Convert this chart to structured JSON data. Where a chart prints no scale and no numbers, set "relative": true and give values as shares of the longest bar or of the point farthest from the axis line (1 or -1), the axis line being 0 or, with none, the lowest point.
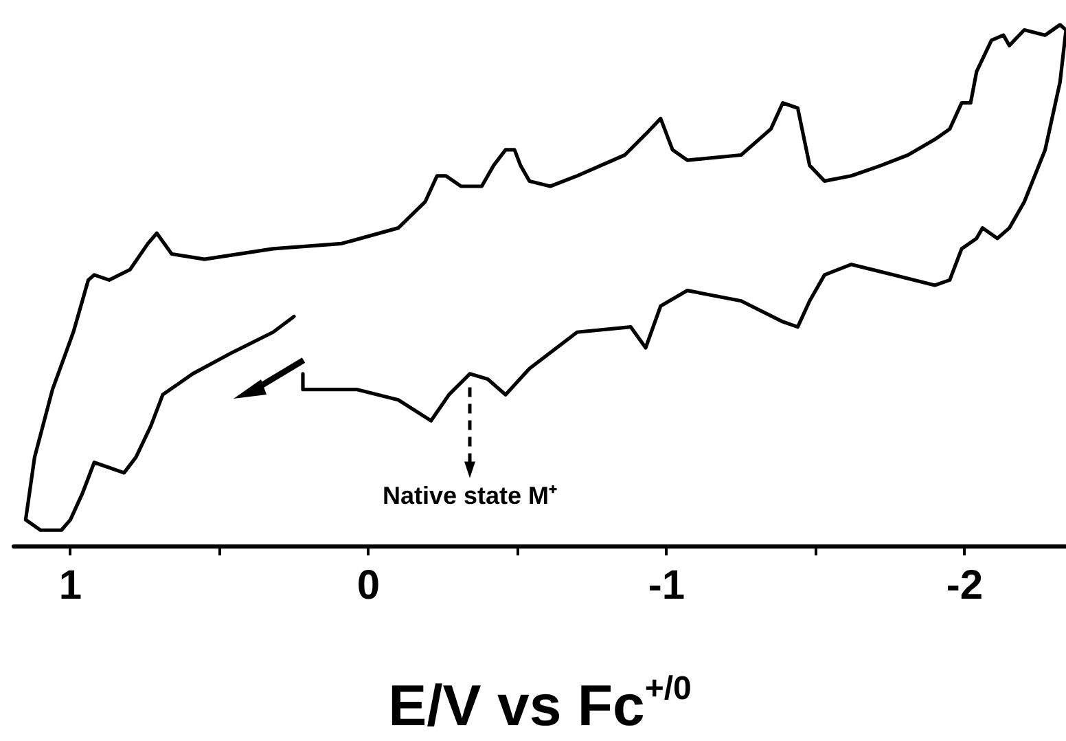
{
  "chart_data": {
    "type": "line",
    "relative": true,
    "xlabel": "E/V vs Fc$^{+/0}$",
    "annotations": [
      {
        "text": "Native state M⁺",
        "x": -0.34,
        "y": 0.32
      }
    ],
    "xlim": [
      1.19,
      -2.34
    ],
    "xticks": [
      1,
      {
        "value": 0.5,
        "label": null
      },
      0,
      {
        "value": -0.5,
        "label": null
      },
      -1,
      {
        "value": -1.5,
        "label": null
      },
      -2
    ],
    "marker": "none",
    "x": [
      0.22,
      0.22,
      0.04,
      -0.1,
      -0.21,
      -0.27,
      -0.34,
      -0.4,
      -0.46,
      -0.54,
      -0.7,
      -0.88,
      -0.93,
      -0.98,
      -1.07,
      -1.25,
      -1.39,
      -1.44,
      -1.48,
      -1.53,
      -1.62,
      -1.76,
      -1.9,
      -1.95,
      -1.99,
      -2.04,
      -2.06,
      -2.11,
      -2.15,
      -2.2,
      -2.27,
      -2.32,
      -2.34,
      -2.32,
      -2.27,
      -2.2,
      -2.15,
      -2.13,
      -2.09,
      -2.04,
      -2.02,
      -1.99,
      -1.95,
      -1.9,
      -1.81,
      -1.72,
      -1.62,
      -1.53,
      -1.48,
      -1.44,
      -1.39,
      -1.35,
      -1.25,
      -1.07,
      -1.02,
      -0.98,
      -0.93,
      -0.86,
      -0.7,
      -0.61,
      -0.54,
      -0.51,
      -0.49,
      -0.46,
      -0.42,
      -0.38,
      -0.31,
      -0.26,
      -0.23,
      -0.19,
      -0.1,
      0.09,
      0.32,
      0.55,
      0.66,
      0.71,
      0.74,
      0.8,
      0.87,
      0.92,
      0.94,
      0.99,
      1.06,
      1.12,
      1.15,
      1.1,
      1.03,
      1.0,
      0.96,
      0.92,
      0.87,
      0.82,
      0.78,
      0.73,
      0.69,
      0.59,
      0.46,
      0.32,
      0.25
    ],
    "series": [
      {
        "color": "#000000",
        "values": [
          0.33,
          0.3,
          0.3,
          0.28,
          0.24,
          0.29,
          0.33,
          0.32,
          0.29,
          0.34,
          0.41,
          0.42,
          0.38,
          0.46,
          0.49,
          0.47,
          0.43,
          0.42,
          0.47,
          0.52,
          0.54,
          0.52,
          0.5,
          0.51,
          0.57,
          0.59,
          0.61,
          0.59,
          0.61,
          0.66,
          0.76,
          0.89,
          0.99,
          1.0,
          0.98,
          0.99,
          0.96,
          0.98,
          0.97,
          0.91,
          0.85,
          0.85,
          0.8,
          0.78,
          0.75,
          0.73,
          0.71,
          0.7,
          0.73,
          0.84,
          0.85,
          0.8,
          0.75,
          0.74,
          0.76,
          0.82,
          0.79,
          0.75,
          0.71,
          0.69,
          0.7,
          0.73,
          0.76,
          0.76,
          0.73,
          0.69,
          0.69,
          0.71,
          0.71,
          0.66,
          0.61,
          0.58,
          0.57,
          0.55,
          0.56,
          0.6,
          0.58,
          0.53,
          0.51,
          0.52,
          0.51,
          0.41,
          0.3,
          0.17,
          0.05,
          0.03,
          0.03,
          0.05,
          0.1,
          0.16,
          0.15,
          0.14,
          0.17,
          0.23,
          0.29,
          0.33,
          0.37,
          0.41,
          0.44
        ]
      }
    ]
  }
}
